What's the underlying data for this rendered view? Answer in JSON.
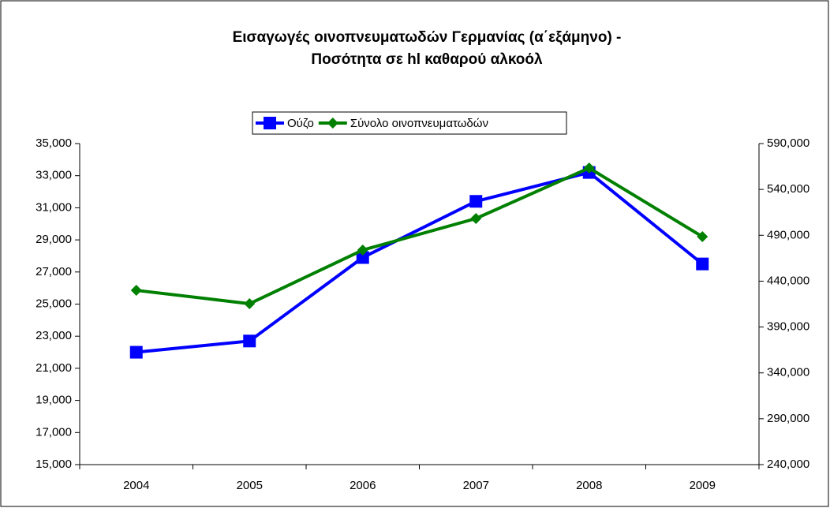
{
  "chart_data": {
    "type": "line",
    "title": [
      "Εισαγωγές οινοπνευματωδών Γερμανίας (α΄εξάμηνο) -",
      "Ποσότητα σε hl καθαρού αλκοόλ"
    ],
    "categories": [
      "2004",
      "2005",
      "2006",
      "2007",
      "2008",
      "2009"
    ],
    "series": [
      {
        "name": "Ούζο",
        "color": "#0000ff",
        "marker": "square",
        "values": [
          22000,
          22700,
          27900,
          31400,
          33200,
          27500
        ]
      },
      {
        "name": "Σύνολο οινοπνευματωδών",
        "color": "#008000",
        "marker": "diamond",
        "axis": "y2",
        "values": [
          430000,
          415400,
          473900,
          508300,
          563300,
          488500
        ]
      }
    ],
    "ylim": [
      15000,
      35000
    ],
    "yticks": [
      {
        "value": 15000,
        "label": "15,000"
      },
      {
        "value": 17000,
        "label": "17,000"
      },
      {
        "value": 19000,
        "label": "19,000"
      },
      {
        "value": 21000,
        "label": "21,000"
      },
      {
        "value": 23000,
        "label": "23,000"
      },
      {
        "value": 25000,
        "label": "25,000"
      },
      {
        "value": 27000,
        "label": "27,000"
      },
      {
        "value": 29000,
        "label": "29,000"
      },
      {
        "value": 31000,
        "label": "31,000"
      },
      {
        "value": 33000,
        "label": "33,000"
      },
      {
        "value": 35000,
        "label": "35,000"
      }
    ],
    "y2lim": [
      240000,
      590000
    ],
    "y2ticks": [
      {
        "value": 240000,
        "label": "240,000"
      },
      {
        "value": 290000,
        "label": "290,000"
      },
      {
        "value": 340000,
        "label": "340,000"
      },
      {
        "value": 390000,
        "label": "390,000"
      },
      {
        "value": 440000,
        "label": "440,000"
      },
      {
        "value": 490000,
        "label": "490,000"
      },
      {
        "value": 540000,
        "label": "540,000"
      },
      {
        "value": 590000,
        "label": "590,000"
      }
    ],
    "legend": "top"
  }
}
